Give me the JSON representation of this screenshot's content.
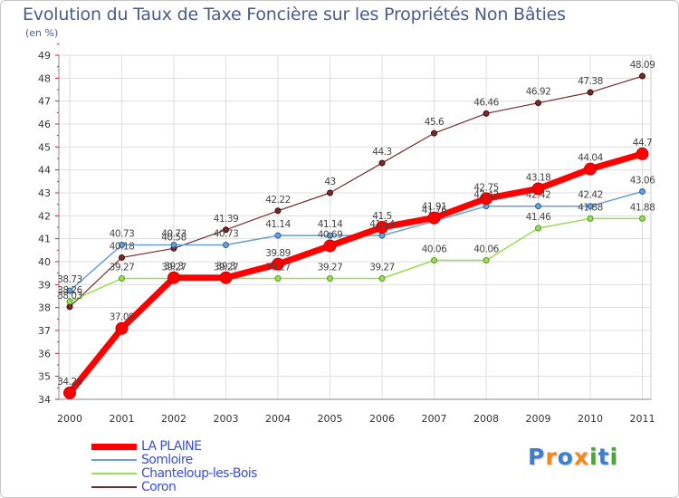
{
  "header": {
    "title": "Evolution du Taux de Taxe Foncière sur les Propriétés Non Bâties",
    "unit": "(en %)"
  },
  "chart_data": {
    "type": "line",
    "title": "Evolution du Taux de Taxe Foncière sur les Propriétés Non Bâties",
    "ylabel": "(en %)",
    "xlabel": "",
    "x": [
      "2000",
      "2001",
      "2002",
      "2003",
      "2004",
      "2005",
      "2006",
      "2007",
      "2008",
      "2009",
      "2010",
      "2011"
    ],
    "ylim": [
      34,
      49
    ],
    "yticks": [
      34,
      35,
      36,
      37,
      38,
      39,
      40,
      41,
      42,
      43,
      44,
      45,
      46,
      47,
      48,
      49
    ],
    "grid": true,
    "series": [
      {
        "name": "LA PLAINE",
        "color": "#ff0000",
        "values": [
          34.28,
          37.09,
          39.3,
          39.3,
          39.89,
          40.69,
          41.5,
          41.91,
          42.75,
          43.18,
          44.04,
          44.7
        ],
        "labels": [
          "34.28",
          "37.09",
          "39.3",
          "39.3",
          "39.89",
          "40.69",
          "41.5",
          "41.91",
          "42.75",
          "43.18",
          "44.04",
          "44.7"
        ]
      },
      {
        "name": "Somloire",
        "color": "#6a9fd0",
        "values": [
          38.73,
          40.73,
          40.73,
          40.73,
          41.14,
          41.14,
          41.14,
          41.76,
          42.42,
          42.42,
          42.42,
          43.06
        ],
        "labels": [
          "38.73",
          "40.73",
          "40.73",
          "40.73",
          "41.14",
          "41.14",
          "41.14",
          "41.76",
          "42.42",
          "42.42",
          "42.42",
          "43.06"
        ]
      },
      {
        "name": "Chanteloup-les-Bois",
        "color": "#99dd55",
        "values": [
          38.26,
          39.27,
          39.27,
          39.27,
          39.27,
          39.27,
          39.27,
          40.06,
          40.06,
          41.46,
          41.88,
          41.88
        ],
        "labels": [
          "38.26",
          "39.27",
          "39.27",
          "39.27",
          "39.27",
          "39.27",
          "39.27",
          "40.06",
          "40.06",
          "41.46",
          "41.88",
          "41.88"
        ]
      },
      {
        "name": "Coron",
        "color": "#7a2a2a",
        "values": [
          38.03,
          40.18,
          40.58,
          41.39,
          42.22,
          43.0,
          44.3,
          45.6,
          46.46,
          46.92,
          47.38,
          48.09
        ],
        "labels": [
          "38.03",
          "40.18",
          "40.58",
          "41.39",
          "42.22",
          "43",
          "44.3",
          "45.6",
          "46.46",
          "46.92",
          "47.38",
          "48.09"
        ]
      }
    ]
  },
  "logo": {
    "text": "Proxiti",
    "letter_colors": [
      "#3a7fd0",
      "#f08a20",
      "#3a7fd0",
      "#f08a20",
      "#44aa33",
      "#3a7fd0",
      "#44aa33"
    ]
  }
}
